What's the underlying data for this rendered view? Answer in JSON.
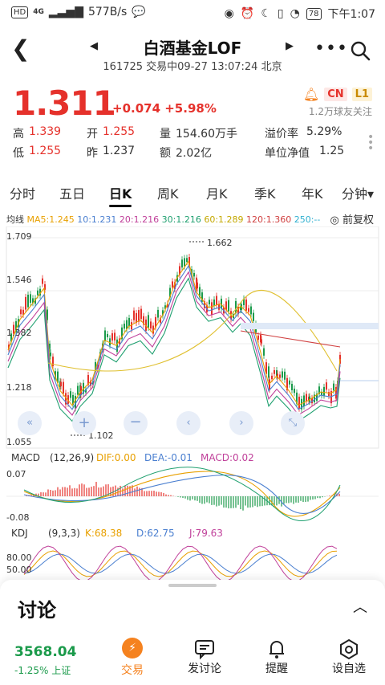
{
  "status": {
    "speed": "577B/s",
    "net": "4G",
    "battery": "78",
    "time": "下午1:07",
    "hd": "HD"
  },
  "header": {
    "title": "白酒基金LOF",
    "subtitle": "161725 交易中09-27 13:07:24 北京"
  },
  "quote": {
    "price": "1.311",
    "change": "+0.074 +5.98%",
    "tag_cn": "CN",
    "tag_l1": "L1",
    "followers": "1.2万球友关注",
    "high_label": "高",
    "high": "1.339",
    "open_label": "开",
    "open": "1.255",
    "vol_label": "量",
    "vol": "154.60万手",
    "premium_label": "溢价率",
    "premium": "5.29%",
    "low_label": "低",
    "low": "1.255",
    "prev_label": "昨",
    "prev": "1.237",
    "amt_label": "额",
    "amt": "2.02亿",
    "nav_label": "单位净值",
    "nav": "1.25"
  },
  "tabs": [
    "分时",
    "五日",
    "日K",
    "周K",
    "月K",
    "季K",
    "年K",
    "分钟▾"
  ],
  "ma": {
    "label": "均线",
    "ma5": "MA5:1.245",
    "ma10": "10:1.231",
    "ma20": "20:1.216",
    "ma30": "30:1.216",
    "ma60": "60:1.289",
    "ma120": "120:1.360",
    "ma250": "250:--",
    "adj": "前复权"
  },
  "chart": {
    "y_top": "1.709",
    "y2": "1.546",
    "y3": "1.382",
    "y4": "1.218",
    "y_bot": "1.055",
    "max_mark": "1.662",
    "min_mark": "1.102",
    "macd_label": "MACD",
    "macd_params": "(12,26,9)",
    "dif": "DIF:0.00",
    "dea": "DEA:-0.01",
    "macd": "MACD:0.02",
    "macd_top": "0.07",
    "macd_bot": "-0.08",
    "kdj_label": "KDJ",
    "kdj_params": "(9,3,3)",
    "k": "K:68.38",
    "d": "D:62.75",
    "j": "J:79.63",
    "kdj_80": "80.00",
    "kdj_50": "50.00"
  },
  "colors": {
    "up": "#e5312b",
    "down": "#1a9a4a",
    "accent": "#f5821f",
    "ma5": "#e8a000",
    "ma10": "#4a7fd0",
    "ma20": "#c0409a",
    "ma30": "#20a070",
    "ma60": "#e0c030",
    "ma120": "#d04040",
    "ma250": "#30b0d0"
  },
  "discussion": "讨论",
  "bottom": {
    "index": "3568.04",
    "index_sub": "-1.25% 上证",
    "trade": "交易",
    "post": "发讨论",
    "remind": "提醒",
    "watch": "设自选"
  }
}
